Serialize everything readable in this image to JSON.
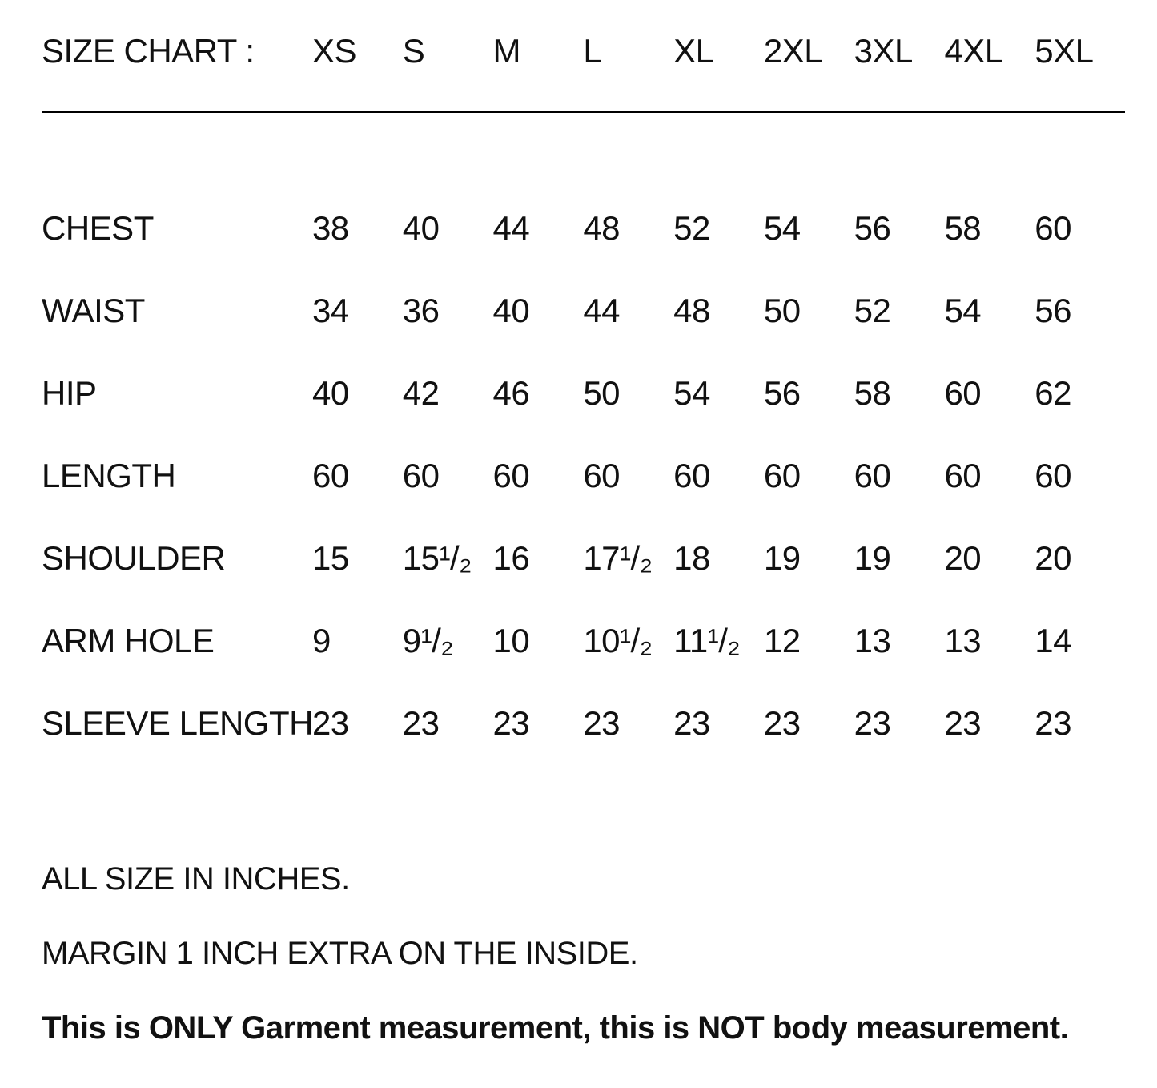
{
  "header": {
    "title": "SIZE CHART :",
    "sizes": [
      "XS",
      "S",
      "M",
      "L",
      "XL",
      "2XL",
      "3XL",
      "4XL",
      "5XL"
    ]
  },
  "table": {
    "rows": [
      {
        "label": "CHEST",
        "values": [
          "38",
          "40",
          "44",
          "48",
          "52",
          "54",
          "56",
          "58",
          "60"
        ]
      },
      {
        "label": "WAIST",
        "values": [
          "34",
          "36",
          "40",
          "44",
          "48",
          "50",
          "52",
          "54",
          "56"
        ]
      },
      {
        "label": "HIP",
        "values": [
          "40",
          "42",
          "46",
          "50",
          "54",
          "56",
          "58",
          "60",
          "62"
        ]
      },
      {
        "label": "LENGTH",
        "values": [
          "60",
          "60",
          "60",
          "60",
          "60",
          "60",
          "60",
          "60",
          "60"
        ]
      },
      {
        "label": "SHOULDER",
        "values": [
          "15",
          "15¹/₂",
          "16",
          "17¹/₂",
          "18",
          "19",
          "19",
          "20",
          "20"
        ]
      },
      {
        "label": "ARM HOLE",
        "values": [
          "9",
          "9¹/₂",
          "10",
          "10¹/₂",
          "11¹/₂",
          "12",
          "13",
          "13",
          "14"
        ]
      },
      {
        "label": "SLEEVE LENGTH",
        "values": [
          "23",
          "23",
          "23",
          "23",
          "23",
          "23",
          "23",
          "23",
          "23"
        ]
      }
    ]
  },
  "notes": {
    "line1": "ALL SIZE IN INCHES.",
    "line2": "MARGIN 1 INCH EXTRA ON THE INSIDE.",
    "line3": "This is ONLY Garment measurement, this is NOT body measurement."
  },
  "colors": {
    "background": "#ffffff",
    "text": "#111111",
    "divider": "#000000"
  }
}
